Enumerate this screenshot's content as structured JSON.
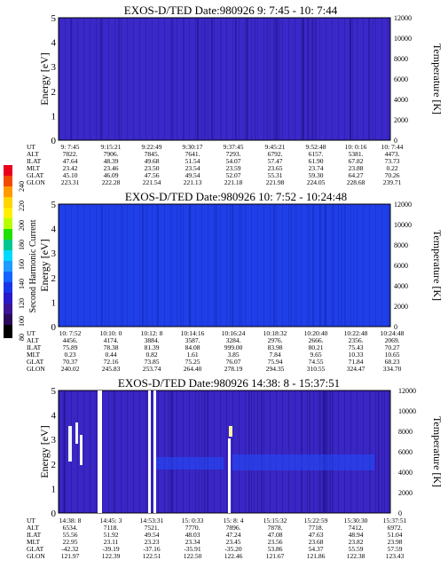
{
  "chart_data": [
    {
      "type": "heatmap",
      "title": "EXOS-D/TED   Date:980926  9: 7:45 - 10: 7:44",
      "ylabel": "Energy [eV]",
      "ylabel_right": "Temperature [K]",
      "ylim": [
        0,
        5
      ],
      "yticks": [
        "0",
        "1",
        "2",
        "3",
        "4",
        "5"
      ],
      "ylim_right": [
        0,
        12000
      ],
      "yticks_right": [
        "0",
        "2000",
        "4000",
        "6000",
        "8000",
        "10000",
        "12000"
      ],
      "grid": false,
      "orbit_rows": [
        "UT",
        "ALT",
        "ILAT",
        "MLT",
        "GLAT",
        "GLON"
      ],
      "orbit_columns": [
        [
          "9: 7:45",
          "7822.",
          "47.64",
          "23.42",
          "45.10",
          "223.31"
        ],
        [
          "9:15:21",
          "7906.",
          "48.39",
          "23.46",
          "46.09",
          "222.28"
        ],
        [
          "9:22:49",
          "7845.",
          "49.68",
          "23.50",
          "47.56",
          "221.54"
        ],
        [
          "9:30:17",
          "7641.",
          "51.54",
          "23.54",
          "49.54",
          "221.13"
        ],
        [
          "9:37:45",
          "7293.",
          "54.07",
          "23.59",
          "52.07",
          "221.18"
        ],
        [
          "9:45:21",
          "6792.",
          "57.47",
          "23.65",
          "55.31",
          "221.98"
        ],
        [
          "9:52:48",
          "6157.",
          "61.90",
          "23.74",
          "59.30",
          "224.05"
        ],
        [
          "10: 0:16",
          "5381.",
          "67.82",
          "23.88",
          "64.27",
          "228.68"
        ],
        [
          "10: 7:44",
          "4473.",
          "73.73",
          "0.22",
          "70.26",
          "239.71"
        ]
      ]
    },
    {
      "type": "heatmap",
      "title": "EXOS-D/TED   Date:980926  10: 7:52 - 10:24:48",
      "ylabel": "Energy [eV]",
      "ylabel_right": "Temperature [K]",
      "ylim": [
        0,
        5
      ],
      "yticks": [
        "0",
        "1",
        "2",
        "3",
        "4",
        "5"
      ],
      "ylim_right": [
        0,
        12000
      ],
      "yticks_right": [
        "0",
        "2000",
        "4000",
        "6000",
        "8000",
        "10000",
        "12000"
      ],
      "grid": false,
      "colorbar": {
        "label": "Second Harmonic Current",
        "ticks": [
          "80",
          "100",
          "120",
          "140",
          "160",
          "180",
          "200",
          "220",
          "240"
        ]
      },
      "orbit_rows": [
        "UT",
        "ALT",
        "ILAT",
        "MLT",
        "GLAT",
        "GLON"
      ],
      "orbit_columns": [
        [
          "10: 7:52",
          "4456.",
          "75.89",
          "0.23",
          "70.37",
          "240.02"
        ],
        [
          "10:10: 0",
          "4174.",
          "78.38",
          "0.44",
          "72.16",
          "245.83"
        ],
        [
          "10:12: 8",
          "3884.",
          "81.39",
          "0.82",
          "73.85",
          "253.74"
        ],
        [
          "10:14:16",
          "3587.",
          "84.08",
          "1.61",
          "75.25",
          "264.40"
        ],
        [
          "10:16:24",
          "3284.",
          "999.00",
          "3.85",
          "76.07",
          "278.19"
        ],
        [
          "10:18:32",
          "2976.",
          "83.98",
          "7.84",
          "75.94",
          "294.35"
        ],
        [
          "10:20:40",
          "2666.",
          "80.21",
          "9.65",
          "74.55",
          "310.55"
        ],
        [
          "10:22:48",
          "2356.",
          "75.43",
          "10.33",
          "71.84",
          "324.47"
        ],
        [
          "10:24:48",
          "2069.",
          "70.27",
          "10.65",
          "68.23",
          "334.70"
        ]
      ]
    },
    {
      "type": "heatmap",
      "title": "EXOS-D/TED   Date:980926  14:38: 8 - 15:37:51",
      "ylabel": "Energy [eV]",
      "ylabel_right": "Temperature [K]",
      "ylim": [
        0,
        5
      ],
      "yticks": [
        "0",
        "1",
        "2",
        "3",
        "4",
        "5"
      ],
      "ylim_right": [
        0,
        12000
      ],
      "yticks_right": [
        "0",
        "2000",
        "4000",
        "6000",
        "8000",
        "10000",
        "12000"
      ],
      "grid": false,
      "orbit_rows": [
        "UT",
        "ALT",
        "ILAT",
        "MLT",
        "GLAT",
        "GLON"
      ],
      "orbit_columns": [
        [
          "14:38: 8",
          "6534.",
          "55.56",
          "22.95",
          "-42.32",
          "121.97"
        ],
        [
          "14:45: 3",
          "7118.",
          "51.92",
          "23.11",
          "-39.19",
          "122.39"
        ],
        [
          "14:53:31",
          "7521.",
          "49.54",
          "23.23",
          "-37.16",
          "122.51"
        ],
        [
          "15: 0:33",
          "7770.",
          "48.03",
          "23.34",
          "-35.91",
          "122.50"
        ],
        [
          "15: 8: 4",
          "7896.",
          "47.24",
          "23.45",
          "-35.20",
          "122.46"
        ],
        [
          "15:15:32",
          "7878.",
          "47.08",
          "23.56",
          "53.86",
          "121.67"
        ],
        [
          "15:22:59",
          "7718.",
          "47.63",
          "23.68",
          "54.37",
          "121.86"
        ],
        [
          "15:30:30",
          "7412.",
          "48.94",
          "23.82",
          "55.59",
          "122.38"
        ],
        [
          "15:37:51",
          "6972.",
          "51.04",
          "23.98",
          "57.59",
          "123.43"
        ]
      ]
    }
  ]
}
